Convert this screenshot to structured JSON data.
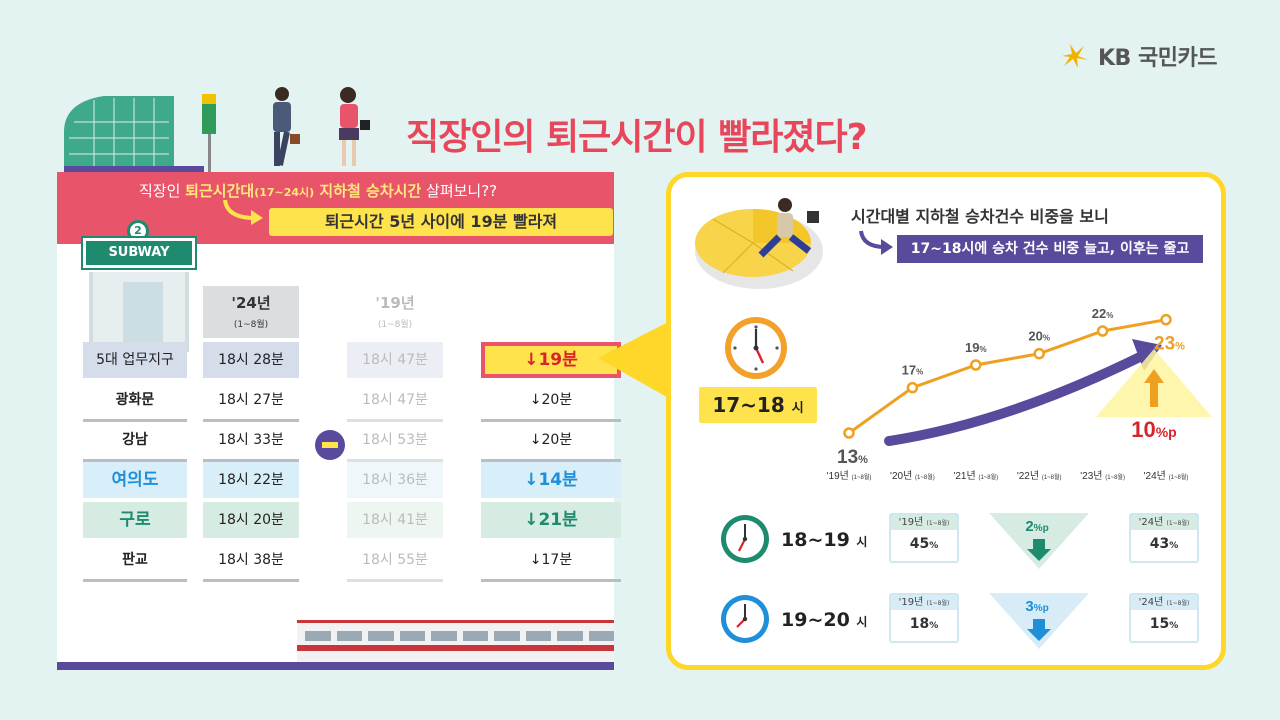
{
  "logo": {
    "text": "KB 국민카드",
    "color": "#f2b100"
  },
  "title": "직장인의 퇴근시간이 빨라졌다?",
  "left": {
    "banner_prefix": "직장인 ",
    "banner_highlight": "퇴근시간대",
    "banner_small": "(17~24시)",
    "banner_highlight2": " 지하철 승차시간",
    "banner_suffix": " 살펴보니??",
    "banner_tag": "퇴근시간 5년 사이에 19분 빨라져",
    "store_sign": "SUBWAY",
    "store_number": "2",
    "col_24": "'24년",
    "col_24_sub": "(1~8월)",
    "col_19": "'19년",
    "col_19_sub": "(1~8월)",
    "rows": [
      {
        "name": "5대 업무지구",
        "t24": "18시 28분",
        "t19": "18시 47분",
        "diff": "19분",
        "style": "main"
      },
      {
        "name": "광화문",
        "t24": "18시 27분",
        "t19": "18시 47분",
        "diff": "20분",
        "style": "plain"
      },
      {
        "name": "강남",
        "t24": "18시 33분",
        "t19": "18시 53분",
        "diff": "20분",
        "style": "plain"
      },
      {
        "name": "여의도",
        "t24": "18시 22분",
        "t19": "18시 36분",
        "diff": "14분",
        "style": "blue"
      },
      {
        "name": "구로",
        "t24": "18시 20분",
        "t19": "18시 41분",
        "diff": "21분",
        "style": "green"
      },
      {
        "name": "판교",
        "t24": "18시 38분",
        "t19": "18시 55분",
        "diff": "17분",
        "style": "plain"
      }
    ]
  },
  "right": {
    "heading": "시간대별 지하철 승차건수 비중을 보니",
    "tag": "17~18시에 승차 건수 비중 늘고, 이후는 줄고",
    "hour_label": "17~18",
    "hour_unit": "시",
    "increase_value": "10",
    "increase_unit": "%p",
    "rows": [
      {
        "label": "18~19",
        "unit": "시",
        "y1": "'19년",
        "y1_sub": "(1~8월)",
        "v1": "45",
        "y2": "'24년",
        "y2_sub": "(1~8월)",
        "v2": "43",
        "change": "2",
        "change_unit": "%p",
        "theme": "green"
      },
      {
        "label": "19~20",
        "unit": "시",
        "y1": "'19년",
        "y1_sub": "(1~8월)",
        "v1": "18",
        "y2": "'24년",
        "y2_sub": "(1~8월)",
        "v2": "15",
        "change": "3",
        "change_unit": "%p",
        "theme": "blue"
      }
    ]
  },
  "chart_data": {
    "type": "line",
    "categories": [
      "'19년 (1~8월)",
      "'20년 (1~8월)",
      "'21년 (1~8월)",
      "'22년 (1~8월)",
      "'23년 (1~8월)",
      "'24년 (1~8월)"
    ],
    "values": [
      13,
      17,
      19,
      20,
      22,
      23
    ],
    "unit": "%",
    "ylim": [
      10,
      25
    ]
  },
  "colors": {
    "pink": "#e8546a",
    "yellow": "#ffe34d",
    "purple": "#5a4a9c",
    "orange": "#f0a020",
    "green": "#1e8a6e",
    "blue": "#1e8fd8",
    "red": "#d7242a"
  }
}
